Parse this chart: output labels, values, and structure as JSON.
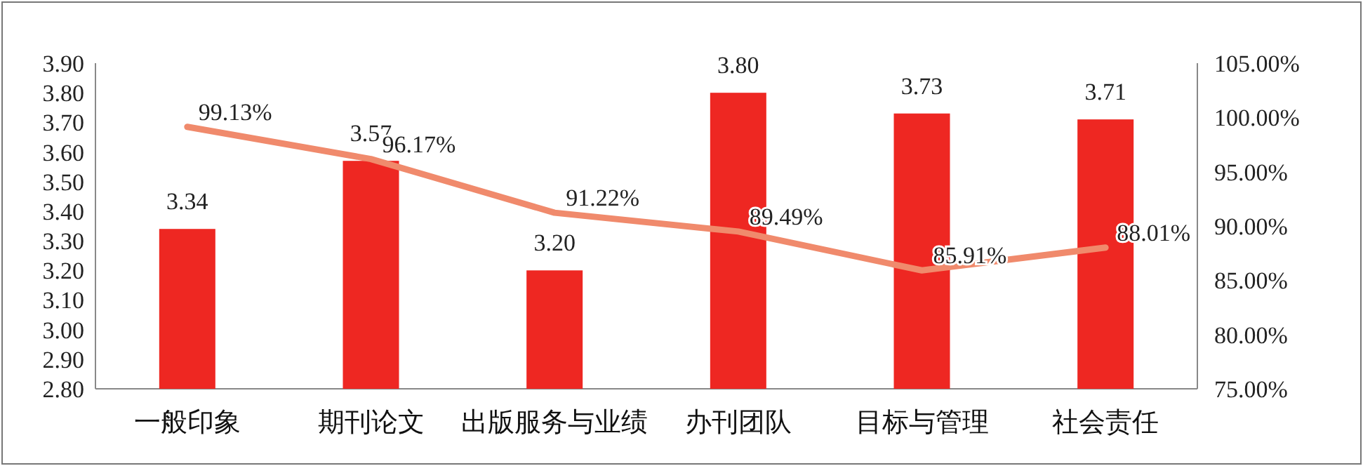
{
  "chart_data": {
    "type": "bar",
    "categories": [
      "一般印象",
      "期刊论文",
      "出版服务与业绩",
      "办刊团队",
      "目标与管理",
      "社会责任"
    ],
    "series": [
      {
        "color": "#ee2722",
        "values": [
          3.34,
          3.57,
          3.2,
          3.8,
          3.73,
          3.71
        ],
        "value_labels": [
          "3.34",
          "3.57",
          "3.20",
          "3.80",
          "3.73",
          "3.71"
        ]
      },
      {
        "type": "line",
        "axis": "y2",
        "color": "#f08a6c",
        "values": [
          99.13,
          96.17,
          91.22,
          89.49,
          85.91,
          88.01
        ],
        "value_labels": [
          "99.13%",
          "96.17%",
          "91.22%",
          "89.49%",
          "85.91%",
          "88.01%"
        ]
      }
    ],
    "ylim": [
      2.8,
      3.9
    ],
    "yticks": [
      {
        "value": 2.8,
        "label": "2.80"
      },
      {
        "value": 2.9,
        "label": "2.90"
      },
      {
        "value": 3.0,
        "label": "3.00"
      },
      {
        "value": 3.1,
        "label": "3.10"
      },
      {
        "value": 3.2,
        "label": "3.20"
      },
      {
        "value": 3.3,
        "label": "3.30"
      },
      {
        "value": 3.4,
        "label": "3.40"
      },
      {
        "value": 3.5,
        "label": "3.50"
      },
      {
        "value": 3.6,
        "label": "3.60"
      },
      {
        "value": 3.7,
        "label": "3.70"
      },
      {
        "value": 3.8,
        "label": "3.80"
      },
      {
        "value": 3.9,
        "label": "3.90"
      }
    ],
    "y2lim": [
      75,
      105
    ],
    "y2ticks": [
      {
        "value": 75,
        "label": "75.00%"
      },
      {
        "value": 80,
        "label": "80.00%"
      },
      {
        "value": 85,
        "label": "85.00%"
      },
      {
        "value": 90,
        "label": "90.00%"
      },
      {
        "value": 95,
        "label": "95.00%"
      },
      {
        "value": 100,
        "label": "100.00%"
      },
      {
        "value": 105,
        "label": "105.00%"
      }
    ]
  }
}
